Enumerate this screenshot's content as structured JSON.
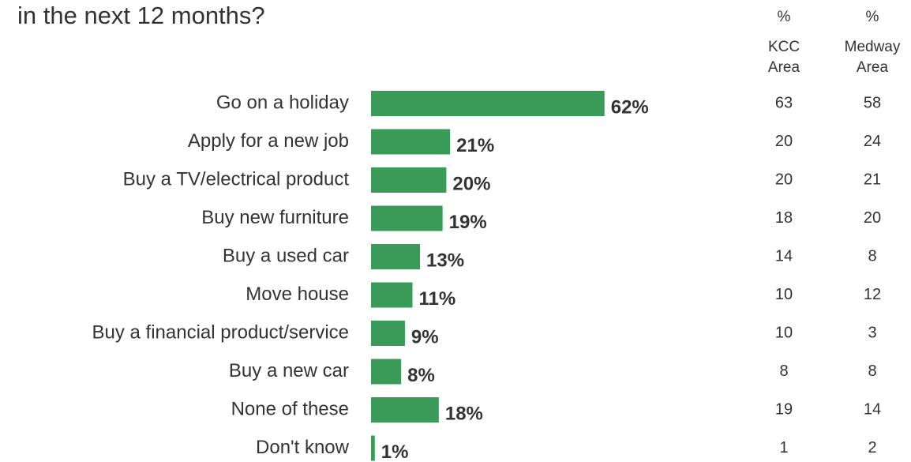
{
  "chart_data": {
    "type": "bar",
    "orientation": "horizontal",
    "title": "in the next 12 months?",
    "categories": [
      "Go on a holiday",
      "Apply for a new job",
      "Buy a TV/electrical product",
      "Buy new furniture",
      "Buy a used car",
      "Move house",
      "Buy a financial product/service",
      "Buy a new car",
      "None of these",
      "Don't know"
    ],
    "values": [
      62,
      21,
      20,
      19,
      13,
      11,
      9,
      8,
      18,
      1
    ],
    "value_labels": [
      "62%",
      "21%",
      "20%",
      "19%",
      "13%",
      "11%",
      "9%",
      "8%",
      "18%",
      "1%"
    ],
    "color": "#3a9a57",
    "columns": [
      {
        "header": [
          "%",
          "KCC",
          "Area"
        ],
        "values": [
          63,
          20,
          20,
          18,
          14,
          10,
          10,
          8,
          19,
          1
        ]
      },
      {
        "header": [
          "%",
          "Medway",
          "Area"
        ],
        "values": [
          58,
          24,
          21,
          20,
          8,
          12,
          3,
          8,
          14,
          2
        ]
      }
    ]
  }
}
